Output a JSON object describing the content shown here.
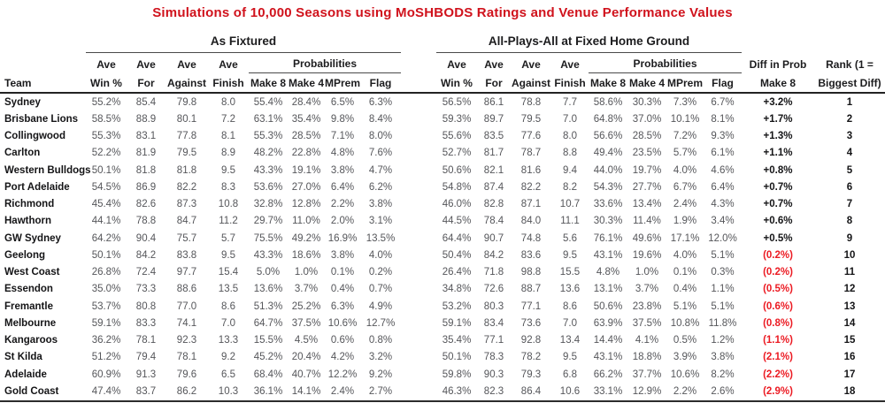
{
  "colors": {
    "title_red": "#d0121c",
    "negative_red": "#ec1b23",
    "header_text": "#1c1c1e",
    "data_text": "#55565a"
  },
  "chart_data": {
    "type": "table",
    "title": "Simulations of 10,000 Seasons using MoSHBODS Ratings and Venue Performance Values",
    "header": {
      "team": "Team",
      "group1": "As Fixtured",
      "group2": "All-Plays-All at Fixed Home Ground",
      "ave": "Ave",
      "probabilities": "Probabilities",
      "col_line2": [
        "Win %",
        "For",
        "Against",
        "Finish",
        "Make 8",
        "Make 4",
        "MPrem",
        "Flag"
      ],
      "diff_line1": "Diff in Prob",
      "diff_line2": "Make 8",
      "rank_line1": "Rank (1 =",
      "rank_line2": "Biggest Diff)"
    },
    "rows": [
      {
        "team": "Sydney",
        "fixtured": [
          "55.2%",
          "85.4",
          "79.8",
          "8.0",
          "55.4%",
          "28.4%",
          "6.5%",
          "6.3%"
        ],
        "all_plays": [
          "56.5%",
          "86.1",
          "78.8",
          "7.7",
          "58.6%",
          "30.3%",
          "7.3%",
          "6.7%"
        ],
        "diff": "+3.2%",
        "rank": "1"
      },
      {
        "team": "Brisbane Lions",
        "fixtured": [
          "58.5%",
          "88.9",
          "80.1",
          "7.2",
          "63.1%",
          "35.4%",
          "9.8%",
          "8.4%"
        ],
        "all_plays": [
          "59.3%",
          "89.7",
          "79.5",
          "7.0",
          "64.8%",
          "37.0%",
          "10.1%",
          "8.1%"
        ],
        "diff": "+1.7%",
        "rank": "2"
      },
      {
        "team": "Collingwood",
        "fixtured": [
          "55.3%",
          "83.1",
          "77.8",
          "8.1",
          "55.3%",
          "28.5%",
          "7.1%",
          "8.0%"
        ],
        "all_plays": [
          "55.6%",
          "83.5",
          "77.6",
          "8.0",
          "56.6%",
          "28.5%",
          "7.2%",
          "9.3%"
        ],
        "diff": "+1.3%",
        "rank": "3"
      },
      {
        "team": "Carlton",
        "fixtured": [
          "52.2%",
          "81.9",
          "79.5",
          "8.9",
          "48.2%",
          "22.8%",
          "4.8%",
          "7.6%"
        ],
        "all_plays": [
          "52.7%",
          "81.7",
          "78.7",
          "8.8",
          "49.4%",
          "23.5%",
          "5.7%",
          "6.1%"
        ],
        "diff": "+1.1%",
        "rank": "4"
      },
      {
        "team": "Western Bulldogs",
        "fixtured": [
          "50.1%",
          "81.8",
          "81.8",
          "9.5",
          "43.3%",
          "19.1%",
          "3.8%",
          "4.7%"
        ],
        "all_plays": [
          "50.6%",
          "82.1",
          "81.6",
          "9.4",
          "44.0%",
          "19.7%",
          "4.0%",
          "4.6%"
        ],
        "diff": "+0.8%",
        "rank": "5"
      },
      {
        "team": "Port Adelaide",
        "fixtured": [
          "54.5%",
          "86.9",
          "82.2",
          "8.3",
          "53.6%",
          "27.0%",
          "6.4%",
          "6.2%"
        ],
        "all_plays": [
          "54.8%",
          "87.4",
          "82.2",
          "8.2",
          "54.3%",
          "27.7%",
          "6.7%",
          "6.4%"
        ],
        "diff": "+0.7%",
        "rank": "6"
      },
      {
        "team": "Richmond",
        "fixtured": [
          "45.4%",
          "82.6",
          "87.3",
          "10.8",
          "32.8%",
          "12.8%",
          "2.2%",
          "3.8%"
        ],
        "all_plays": [
          "46.0%",
          "82.8",
          "87.1",
          "10.7",
          "33.6%",
          "13.4%",
          "2.4%",
          "4.3%"
        ],
        "diff": "+0.7%",
        "rank": "7"
      },
      {
        "team": "Hawthorn",
        "fixtured": [
          "44.1%",
          "78.8",
          "84.7",
          "11.2",
          "29.7%",
          "11.0%",
          "2.0%",
          "3.1%"
        ],
        "all_plays": [
          "44.5%",
          "78.4",
          "84.0",
          "11.1",
          "30.3%",
          "11.4%",
          "1.9%",
          "3.4%"
        ],
        "diff": "+0.6%",
        "rank": "8"
      },
      {
        "team": "GW Sydney",
        "fixtured": [
          "64.2%",
          "90.4",
          "75.7",
          "5.7",
          "75.5%",
          "49.2%",
          "16.9%",
          "13.5%"
        ],
        "all_plays": [
          "64.4%",
          "90.7",
          "74.8",
          "5.6",
          "76.1%",
          "49.6%",
          "17.1%",
          "12.0%"
        ],
        "diff": "+0.5%",
        "rank": "9"
      },
      {
        "team": "Geelong",
        "fixtured": [
          "50.1%",
          "84.2",
          "83.8",
          "9.5",
          "43.3%",
          "18.6%",
          "3.8%",
          "4.0%"
        ],
        "all_plays": [
          "50.4%",
          "84.2",
          "83.6",
          "9.5",
          "43.1%",
          "19.6%",
          "4.0%",
          "5.1%"
        ],
        "diff": "(0.2%)",
        "rank": "10"
      },
      {
        "team": "West Coast",
        "fixtured": [
          "26.8%",
          "72.4",
          "97.7",
          "15.4",
          "5.0%",
          "1.0%",
          "0.1%",
          "0.2%"
        ],
        "all_plays": [
          "26.4%",
          "71.8",
          "98.8",
          "15.5",
          "4.8%",
          "1.0%",
          "0.1%",
          "0.3%"
        ],
        "diff": "(0.2%)",
        "rank": "11"
      },
      {
        "team": "Essendon",
        "fixtured": [
          "35.0%",
          "73.3",
          "88.6",
          "13.5",
          "13.6%",
          "3.7%",
          "0.4%",
          "0.7%"
        ],
        "all_plays": [
          "34.8%",
          "72.6",
          "88.7",
          "13.6",
          "13.1%",
          "3.7%",
          "0.4%",
          "1.1%"
        ],
        "diff": "(0.5%)",
        "rank": "12"
      },
      {
        "team": "Fremantle",
        "fixtured": [
          "53.7%",
          "80.8",
          "77.0",
          "8.6",
          "51.3%",
          "25.2%",
          "6.3%",
          "4.9%"
        ],
        "all_plays": [
          "53.2%",
          "80.3",
          "77.1",
          "8.6",
          "50.6%",
          "23.8%",
          "5.1%",
          "5.1%"
        ],
        "diff": "(0.6%)",
        "rank": "13"
      },
      {
        "team": "Melbourne",
        "fixtured": [
          "59.1%",
          "83.3",
          "74.1",
          "7.0",
          "64.7%",
          "37.5%",
          "10.6%",
          "12.7%"
        ],
        "all_plays": [
          "59.1%",
          "83.4",
          "73.6",
          "7.0",
          "63.9%",
          "37.5%",
          "10.8%",
          "11.8%"
        ],
        "diff": "(0.8%)",
        "rank": "14"
      },
      {
        "team": "Kangaroos",
        "fixtured": [
          "36.2%",
          "78.1",
          "92.3",
          "13.3",
          "15.5%",
          "4.5%",
          "0.6%",
          "0.8%"
        ],
        "all_plays": [
          "35.4%",
          "77.1",
          "92.8",
          "13.4",
          "14.4%",
          "4.1%",
          "0.5%",
          "1.2%"
        ],
        "diff": "(1.1%)",
        "rank": "15"
      },
      {
        "team": "St Kilda",
        "fixtured": [
          "51.2%",
          "79.4",
          "78.1",
          "9.2",
          "45.2%",
          "20.4%",
          "4.2%",
          "3.2%"
        ],
        "all_plays": [
          "50.1%",
          "78.3",
          "78.2",
          "9.5",
          "43.1%",
          "18.8%",
          "3.9%",
          "3.8%"
        ],
        "diff": "(2.1%)",
        "rank": "16"
      },
      {
        "team": "Adelaide",
        "fixtured": [
          "60.9%",
          "91.3",
          "79.6",
          "6.5",
          "68.4%",
          "40.7%",
          "12.2%",
          "9.2%"
        ],
        "all_plays": [
          "59.8%",
          "90.3",
          "79.3",
          "6.8",
          "66.2%",
          "37.7%",
          "10.6%",
          "8.2%"
        ],
        "diff": "(2.2%)",
        "rank": "17"
      },
      {
        "team": "Gold Coast",
        "fixtured": [
          "47.4%",
          "83.7",
          "86.2",
          "10.3",
          "36.1%",
          "14.1%",
          "2.4%",
          "2.7%"
        ],
        "all_plays": [
          "46.3%",
          "82.3",
          "86.4",
          "10.6",
          "33.1%",
          "12.9%",
          "2.2%",
          "2.6%"
        ],
        "diff": "(2.9%)",
        "rank": "18"
      }
    ]
  }
}
